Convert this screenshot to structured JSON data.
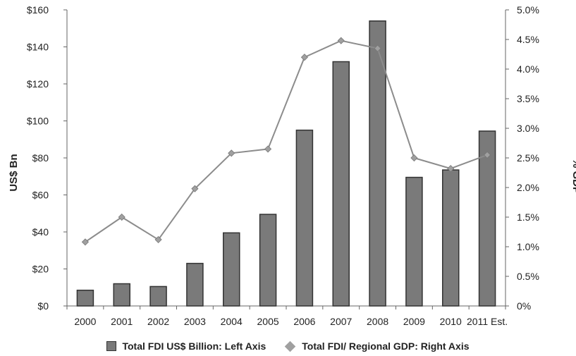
{
  "chart_data": {
    "type": "bar",
    "categories": [
      "2000",
      "2001",
      "2002",
      "2003",
      "2004",
      "2005",
      "2006",
      "2007",
      "2008",
      "2009",
      "2010",
      "2011 Est."
    ],
    "series": [
      {
        "name": "Total FDI US$ Billion: Left Axis",
        "type": "bar",
        "axis": "left",
        "values": [
          8.5,
          12,
          10.5,
          23,
          39.5,
          49.5,
          95,
          132,
          154,
          69.5,
          73.5,
          94.5
        ]
      },
      {
        "name": "Total FDI/ Regional GDP: Right Axis",
        "type": "line",
        "axis": "right",
        "values": [
          1.08,
          1.5,
          1.12,
          1.98,
          2.58,
          2.65,
          4.2,
          4.48,
          4.35,
          2.5,
          2.32,
          2.55
        ]
      }
    ],
    "ylabel_left": "US$ Bn",
    "ylabel_right": "% GDP",
    "ylim_left": [
      0,
      160
    ],
    "ylim_right": [
      0,
      5
    ],
    "yticks_left": [
      "$0",
      "$20",
      "$40",
      "$60",
      "$80",
      "$100",
      "$120",
      "$140",
      "$160"
    ],
    "yticks_right": [
      "0%",
      "0.5%",
      "1.0%",
      "1.5%",
      "2.0%",
      "2.5%",
      "3.0%",
      "3.5%",
      "4.0%",
      "4.5%",
      "5.0%"
    ],
    "grid": false,
    "legend_position": "bottom",
    "colors": {
      "bar": "#7a7a7a",
      "bar_outline": "#333333",
      "line": "#8c8c8c",
      "marker": "#a0a0a0"
    }
  }
}
